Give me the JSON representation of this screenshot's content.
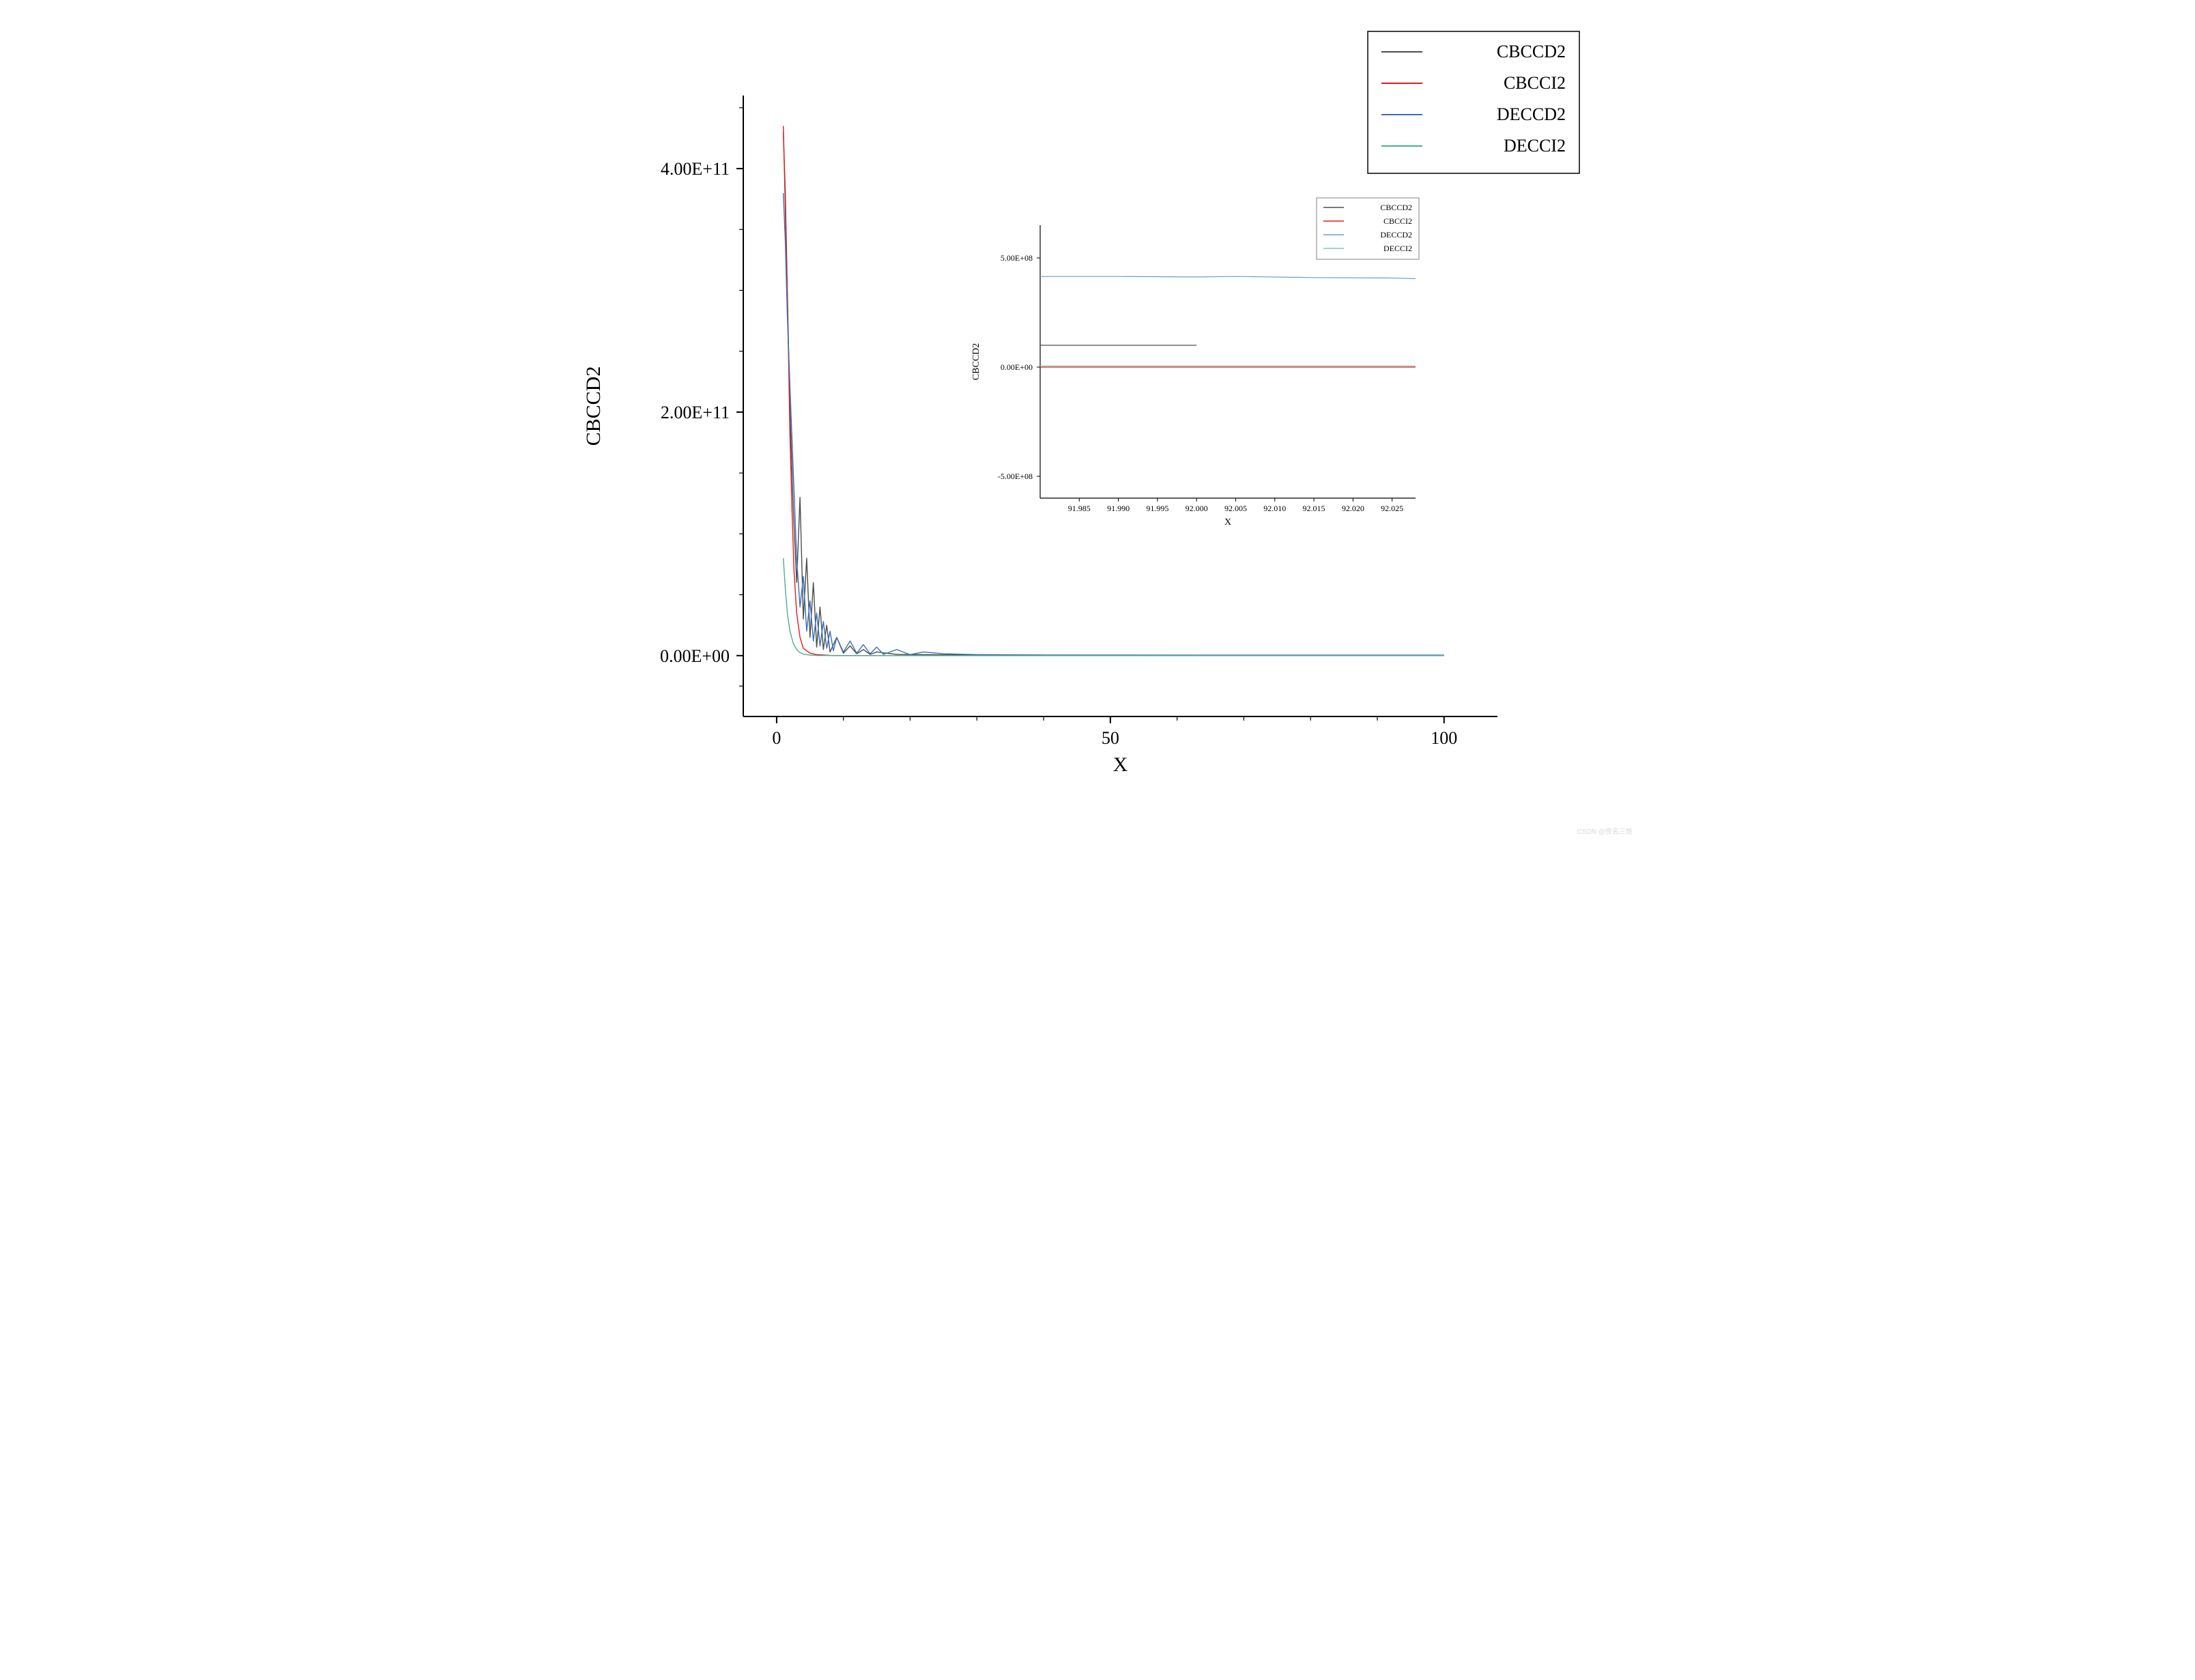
{
  "main_chart": {
    "type": "line",
    "xlabel": "X",
    "ylabel": "CBCCD2",
    "xlabel_fontsize": 30,
    "ylabel_fontsize": 30,
    "tick_fontsize": 26,
    "xlim": [
      -5,
      108
    ],
    "ylim": [
      -50000000000.0,
      460000000000.0
    ],
    "xticks": [
      0,
      50,
      100
    ],
    "yticks": [
      {
        "v": 0,
        "label": "0.00E+00"
      },
      {
        "v": 200000000000.0,
        "label": "2.00E+11"
      },
      {
        "v": 400000000000.0,
        "label": "4.00E+11"
      }
    ],
    "axis_color": "#000000",
    "axis_width": 2,
    "tick_len_major": 10,
    "tick_len_minor": 6,
    "minor_xticks": [
      10,
      20,
      30,
      40,
      60,
      70,
      80,
      90
    ],
    "minor_yticks": [
      50000000000.0,
      100000000000.0,
      150000000000.0,
      250000000000.0,
      300000000000.0,
      350000000000.0,
      450000000000.0,
      -25000000000.0
    ],
    "background_color": "#ffffff",
    "series": [
      {
        "name": "CBCCD2",
        "color": "#4d4d4d",
        "width": 1.4,
        "data": [
          [
            1,
            430000000000.0
          ],
          [
            1.3,
            380000000000.0
          ],
          [
            1.6,
            300000000000.0
          ],
          [
            2,
            200000000000.0
          ],
          [
            2.5,
            120000000000.0
          ],
          [
            3,
            60000000000.0
          ],
          [
            3.5,
            130000000000.0
          ],
          [
            4,
            30000000000.0
          ],
          [
            4.5,
            80000000000.0
          ],
          [
            5,
            15000000000.0
          ],
          [
            5.5,
            60000000000.0
          ],
          [
            6,
            7000000000.0
          ],
          [
            6.5,
            40000000000.0
          ],
          [
            7,
            5000000000.0
          ],
          [
            7.5,
            25000000000.0
          ],
          [
            8,
            3000000000.0
          ],
          [
            9,
            15000000000.0
          ],
          [
            10,
            2000000000.0
          ],
          [
            11,
            8000000000.0
          ],
          [
            12,
            1500000000.0
          ],
          [
            13,
            5000000000.0
          ],
          [
            14,
            1000000000.0
          ],
          [
            15,
            3000000000.0
          ],
          [
            18,
            1000000000.0
          ],
          [
            22,
            800000000.0
          ],
          [
            30,
            500000000.0
          ],
          [
            50,
            300000000.0
          ],
          [
            70,
            200000000.0
          ],
          [
            92,
            100000000.0
          ],
          [
            100,
            100000000.0
          ]
        ]
      },
      {
        "name": "CBCCI2",
        "color": "#e41a1c",
        "width": 1.4,
        "data": [
          [
            1,
            435000000000.0
          ],
          [
            1.2,
            390000000000.0
          ],
          [
            1.5,
            320000000000.0
          ],
          [
            1.8,
            240000000000.0
          ],
          [
            2,
            180000000000.0
          ],
          [
            2.3,
            120000000000.0
          ],
          [
            2.6,
            70000000000.0
          ],
          [
            3,
            35000000000.0
          ],
          [
            3.5,
            15000000000.0
          ],
          [
            4,
            6000000000.0
          ],
          [
            5,
            2000000000.0
          ],
          [
            6,
            800000000.0
          ],
          [
            8,
            200000000.0
          ],
          [
            10,
            50000000.0
          ],
          [
            15,
            10000000.0
          ],
          [
            20,
            2000000.0
          ],
          [
            30,
            500000.0
          ],
          [
            50,
            0
          ],
          [
            70,
            0
          ],
          [
            100,
            0
          ]
        ]
      },
      {
        "name": "DECCD2",
        "color": "#3a6fb7",
        "width": 1.4,
        "data": [
          [
            1,
            380000000000.0
          ],
          [
            1.3,
            340000000000.0
          ],
          [
            1.6,
            280000000000.0
          ],
          [
            2,
            220000000000.0
          ],
          [
            2.5,
            150000000000.0
          ],
          [
            3,
            80000000000.0
          ],
          [
            3.5,
            40000000000.0
          ],
          [
            4,
            65000000000.0
          ],
          [
            4.5,
            20000000000.0
          ],
          [
            5,
            45000000000.0
          ],
          [
            5.5,
            12000000000.0
          ],
          [
            6,
            35000000000.0
          ],
          [
            6.5,
            8000000000.0
          ],
          [
            7,
            28000000000.0
          ],
          [
            7.5,
            6000000000.0
          ],
          [
            8,
            20000000000.0
          ],
          [
            8.5,
            4000000000.0
          ],
          [
            9,
            15000000000.0
          ],
          [
            10,
            3000000000.0
          ],
          [
            11,
            12000000000.0
          ],
          [
            12,
            2000000000.0
          ],
          [
            13,
            9000000000.0
          ],
          [
            14,
            1500000000.0
          ],
          [
            15,
            7000000000.0
          ],
          [
            16,
            1000000000.0
          ],
          [
            18,
            5000000000.0
          ],
          [
            20,
            800000000.0
          ],
          [
            22,
            3000000000.0
          ],
          [
            25,
            1500000000.0
          ],
          [
            30,
            800000000.0
          ],
          [
            40,
            500000000.0
          ],
          [
            50,
            450000000.0
          ],
          [
            70,
            420000000.0
          ],
          [
            92,
            410000000.0
          ],
          [
            100,
            400000000.0
          ]
        ]
      },
      {
        "name": "DECCI2",
        "color": "#4daf8e",
        "width": 1.4,
        "data": [
          [
            1,
            80000000000.0
          ],
          [
            1.3,
            55000000000.0
          ],
          [
            1.6,
            35000000000.0
          ],
          [
            2,
            20000000000.0
          ],
          [
            2.5,
            10000000000.0
          ],
          [
            3,
            5000000000.0
          ],
          [
            3.5,
            2500000000.0
          ],
          [
            4,
            1200000000.0
          ],
          [
            5,
            400000000.0
          ],
          [
            6,
            150000000.0
          ],
          [
            8,
            30000000.0
          ],
          [
            10,
            5000000.0
          ],
          [
            15,
            500000.0
          ],
          [
            20,
            0
          ],
          [
            30,
            0
          ],
          [
            50,
            0
          ],
          [
            70,
            0
          ],
          [
            92,
            0
          ],
          [
            100,
            0
          ]
        ]
      }
    ]
  },
  "inset_chart": {
    "type": "line",
    "xlabel": "X",
    "ylabel": "CBCCD2",
    "xlabel_fontsize": 14,
    "ylabel_fontsize": 14,
    "tick_fontsize": 12,
    "xlim": [
      91.98,
      92.028
    ],
    "ylim": [
      -600000000.0,
      650000000.0
    ],
    "xticks": [
      91.985,
      91.99,
      91.995,
      92.0,
      92.005,
      92.01,
      92.015,
      92.02,
      92.025
    ],
    "xtick_labels": [
      "91.985",
      "91.990",
      "91.995",
      "92.000",
      "92.005",
      "92.010",
      "92.015",
      "92.020",
      "92.025"
    ],
    "yticks": [
      {
        "v": -500000000.0,
        "label": "-5.00E+08"
      },
      {
        "v": 0,
        "label": "0.00E+00"
      },
      {
        "v": 500000000.0,
        "label": "5.00E+08"
      }
    ],
    "axis_color": "#000000",
    "axis_width": 1.2,
    "tick_len": 5,
    "series": [
      {
        "name": "CBCCD2",
        "color": "#4d4d4d",
        "width": 1.2,
        "data": [
          [
            91.98,
            100000000.0
          ],
          [
            91.985,
            100000000.0
          ],
          [
            91.99,
            100000000.0
          ],
          [
            91.995,
            100000000.0
          ],
          [
            92.0,
            100000000.0
          ]
        ]
      },
      {
        "name": "CBCCI2",
        "color": "#e41a1c",
        "width": 1.2,
        "data": [
          [
            91.98,
            0
          ],
          [
            92.028,
            0
          ]
        ]
      },
      {
        "name": "DECCD2",
        "color": "#6a9bd1",
        "width": 1.2,
        "data": [
          [
            91.98,
            415000000.0
          ],
          [
            91.99,
            415000000.0
          ],
          [
            92.0,
            413000000.0
          ],
          [
            92.005,
            415000000.0
          ],
          [
            92.015,
            410000000.0
          ],
          [
            92.025,
            408000000.0
          ],
          [
            92.028,
            405000000.0
          ]
        ]
      },
      {
        "name": "DECCI2",
        "color": "#7fc9b0",
        "width": 1.2,
        "data": [
          [
            91.98,
            5000000.0
          ],
          [
            92.028,
            5000000.0
          ]
        ]
      }
    ]
  },
  "main_legend": {
    "border_color": "#000000",
    "border_width": 1.5,
    "background": "#ffffff",
    "fontsize": 26,
    "line_len": 60,
    "items": [
      {
        "label": "CBCCD2",
        "color": "#4d4d4d"
      },
      {
        "label": "CBCCI2",
        "color": "#e41a1c"
      },
      {
        "label": "DECCD2",
        "color": "#3a6fb7"
      },
      {
        "label": "DECCI2",
        "color": "#4daf8e"
      }
    ]
  },
  "inset_legend": {
    "border_color": "#808080",
    "border_width": 1,
    "background": "#ffffff",
    "fontsize": 12,
    "line_len": 30,
    "items": [
      {
        "label": "CBCCD2",
        "color": "#4d4d4d"
      },
      {
        "label": "CBCCI2",
        "color": "#e41a1c"
      },
      {
        "label": "DECCD2",
        "color": "#6a9bd1"
      },
      {
        "label": "DECCI2",
        "color": "#7fc9b0"
      }
    ]
  },
  "watermark": "CSDN @佚名三姓"
}
